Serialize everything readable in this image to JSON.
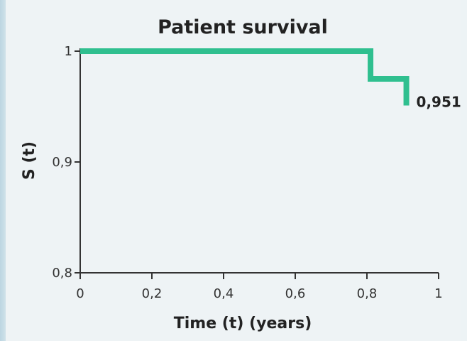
{
  "chart_data": {
    "type": "line",
    "step": true,
    "title": "Patient survival",
    "xlabel": "Time (t) (years)",
    "ylabel": "S (t)",
    "xlim": [
      0,
      1
    ],
    "ylim": [
      0.8,
      1
    ],
    "x_ticks": [
      0,
      0.2,
      0.4,
      0.6,
      0.8,
      1
    ],
    "x_tick_labels": [
      "0",
      "0,2",
      "0,4",
      "0,6",
      "0,8",
      "1"
    ],
    "y_ticks": [
      0.8,
      0.9,
      1
    ],
    "y_tick_labels": [
      "0,8",
      "0,9",
      "1"
    ],
    "grid": false,
    "series": [
      {
        "color": "#2fbf8f",
        "x": [
          0,
          0.81,
          0.81,
          0.91,
          0.91
        ],
        "y": [
          1,
          1,
          0.975,
          0.975,
          0.951
        ]
      }
    ],
    "annotations": [
      {
        "text": "0,951",
        "x": 0.91,
        "y": 0.951
      }
    ]
  }
}
